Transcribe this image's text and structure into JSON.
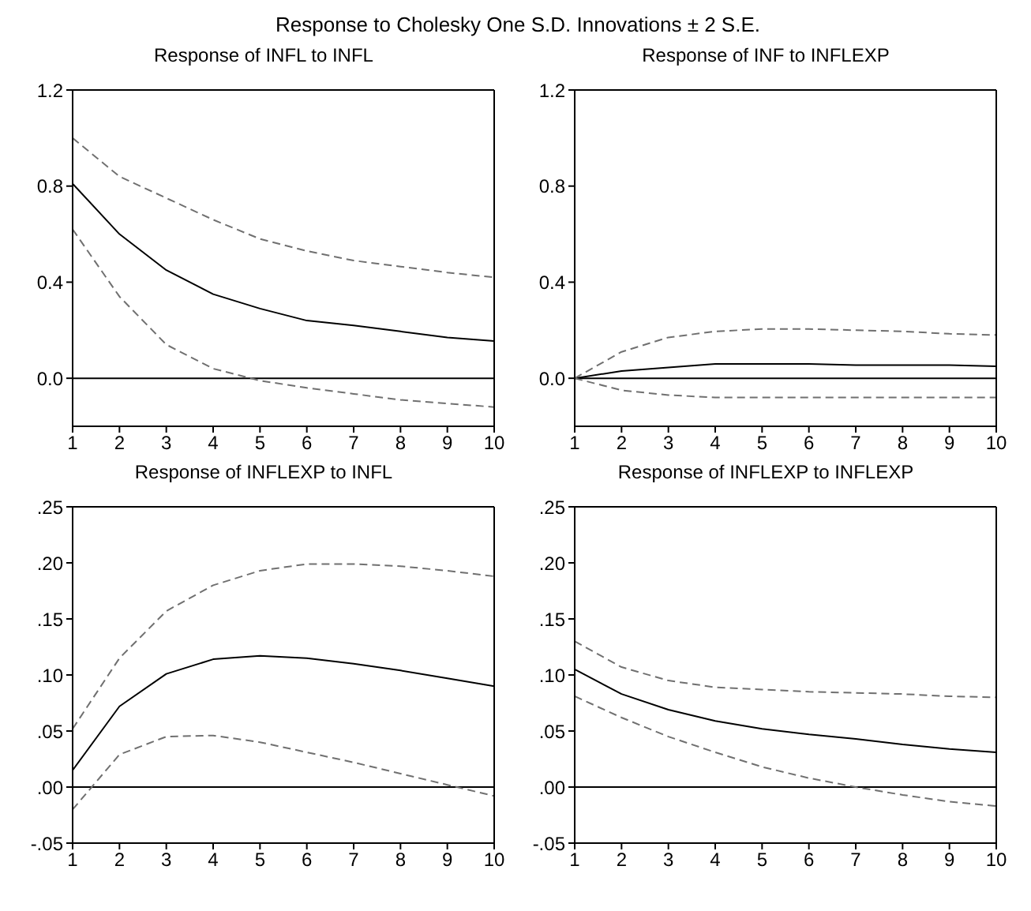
{
  "chart_data": [
    {
      "type": "line",
      "title": "Response of INFL to INFL",
      "annotations": [
        "Response to Cholesky One S.D. Innovations ± 2 S.E."
      ],
      "x": [
        1,
        2,
        3,
        4,
        5,
        6,
        7,
        8,
        9,
        10
      ],
      "xlim": [
        1,
        10
      ],
      "xticks": [
        1,
        2,
        3,
        4,
        5,
        6,
        7,
        8,
        9,
        10
      ],
      "ylim": [
        -0.2,
        1.2
      ],
      "yticks": [
        {
          "value": 0,
          "label": "0.0"
        },
        0.4,
        0.8,
        1.2
      ],
      "grid": false,
      "legend": false,
      "marker": "none",
      "ref_lines": [
        {
          "axis": "y",
          "value": 0,
          "color": "#000000"
        }
      ],
      "series": [
        {
          "color": "#000000",
          "line_style": "solid",
          "values": [
            0.81,
            0.6,
            0.45,
            0.35,
            0.29,
            0.24,
            0.22,
            0.195,
            0.17,
            0.155
          ]
        },
        {
          "color": "#707070",
          "line_style": "dashed",
          "values": [
            1.0,
            0.84,
            0.75,
            0.66,
            0.58,
            0.53,
            0.49,
            0.465,
            0.44,
            0.42
          ]
        },
        {
          "color": "#707070",
          "line_style": "dashed",
          "values": [
            0.62,
            0.34,
            0.14,
            0.04,
            -0.01,
            -0.04,
            -0.065,
            -0.09,
            -0.105,
            -0.12
          ]
        }
      ]
    },
    {
      "type": "line",
      "title": "Response of INF to INFLEXP",
      "x": [
        1,
        2,
        3,
        4,
        5,
        6,
        7,
        8,
        9,
        10
      ],
      "xlim": [
        1,
        10
      ],
      "xticks": [
        1,
        2,
        3,
        4,
        5,
        6,
        7,
        8,
        9,
        10
      ],
      "ylim": [
        -0.2,
        1.2
      ],
      "yticks": [
        {
          "value": 0,
          "label": "0.0"
        },
        0.4,
        0.8,
        1.2
      ],
      "grid": false,
      "legend": false,
      "marker": "none",
      "ref_lines": [
        {
          "axis": "y",
          "value": 0,
          "color": "#000000"
        }
      ],
      "series": [
        {
          "color": "#000000",
          "line_style": "solid",
          "values": [
            0,
            0.03,
            0.045,
            0.06,
            0.06,
            0.06,
            0.055,
            0.055,
            0.055,
            0.05
          ]
        },
        {
          "color": "#707070",
          "line_style": "dashed",
          "values": [
            0,
            0.11,
            0.17,
            0.195,
            0.205,
            0.205,
            0.2,
            0.195,
            0.185,
            0.18
          ]
        },
        {
          "color": "#707070",
          "line_style": "dashed",
          "values": [
            0,
            -0.05,
            -0.07,
            -0.08,
            -0.08,
            -0.08,
            -0.08,
            -0.08,
            -0.08,
            -0.08
          ]
        }
      ]
    },
    {
      "type": "line",
      "title": "Response of INFLEXP to INFL",
      "x": [
        1,
        2,
        3,
        4,
        5,
        6,
        7,
        8,
        9,
        10
      ],
      "xlim": [
        1,
        10
      ],
      "xticks": [
        1,
        2,
        3,
        4,
        5,
        6,
        7,
        8,
        9,
        10
      ],
      "ylim": [
        -0.05,
        0.25
      ],
      "yticks": [
        {
          "value": -0.05,
          "label": "-.05"
        },
        {
          "value": 0,
          "label": ".00"
        },
        {
          "value": 0.05,
          "label": ".05"
        },
        {
          "value": 0.1,
          "label": ".10"
        },
        {
          "value": 0.15,
          "label": ".15"
        },
        {
          "value": 0.2,
          "label": ".20"
        },
        {
          "value": 0.25,
          "label": ".25"
        }
      ],
      "grid": false,
      "legend": false,
      "marker": "none",
      "ref_lines": [
        {
          "axis": "y",
          "value": 0,
          "color": "#000000"
        }
      ],
      "series": [
        {
          "color": "#000000",
          "line_style": "solid",
          "values": [
            0.015,
            0.072,
            0.101,
            0.114,
            0.117,
            0.115,
            0.11,
            0.104,
            0.097,
            0.09
          ]
        },
        {
          "color": "#707070",
          "line_style": "dashed",
          "values": [
            0.052,
            0.115,
            0.157,
            0.18,
            0.193,
            0.199,
            0.199,
            0.197,
            0.193,
            0.188
          ]
        },
        {
          "color": "#707070",
          "line_style": "dashed",
          "values": [
            -0.02,
            0.029,
            0.045,
            0.046,
            0.04,
            0.031,
            0.022,
            0.012,
            0.002,
            -0.008
          ]
        }
      ]
    },
    {
      "type": "line",
      "title": "Response of INFLEXP to INFLEXP",
      "x": [
        1,
        2,
        3,
        4,
        5,
        6,
        7,
        8,
        9,
        10
      ],
      "xlim": [
        1,
        10
      ],
      "xticks": [
        1,
        2,
        3,
        4,
        5,
        6,
        7,
        8,
        9,
        10
      ],
      "ylim": [
        -0.05,
        0.25
      ],
      "yticks": [
        {
          "value": -0.05,
          "label": "-.05"
        },
        {
          "value": 0,
          "label": ".00"
        },
        {
          "value": 0.05,
          "label": ".05"
        },
        {
          "value": 0.1,
          "label": ".10"
        },
        {
          "value": 0.15,
          "label": ".15"
        },
        {
          "value": 0.2,
          "label": ".20"
        },
        {
          "value": 0.25,
          "label": ".25"
        }
      ],
      "grid": false,
      "legend": false,
      "marker": "none",
      "ref_lines": [
        {
          "axis": "y",
          "value": 0,
          "color": "#000000"
        }
      ],
      "series": [
        {
          "color": "#000000",
          "line_style": "solid",
          "values": [
            0.105,
            0.083,
            0.069,
            0.059,
            0.052,
            0.047,
            0.043,
            0.038,
            0.034,
            0.031
          ]
        },
        {
          "color": "#707070",
          "line_style": "dashed",
          "values": [
            0.13,
            0.107,
            0.095,
            0.089,
            0.087,
            0.085,
            0.084,
            0.083,
            0.081,
            0.08
          ]
        },
        {
          "color": "#707070",
          "line_style": "dashed",
          "values": [
            0.081,
            0.062,
            0.045,
            0.031,
            0.018,
            0.008,
            0.0,
            -0.007,
            -0.013,
            -0.017
          ]
        }
      ]
    }
  ]
}
